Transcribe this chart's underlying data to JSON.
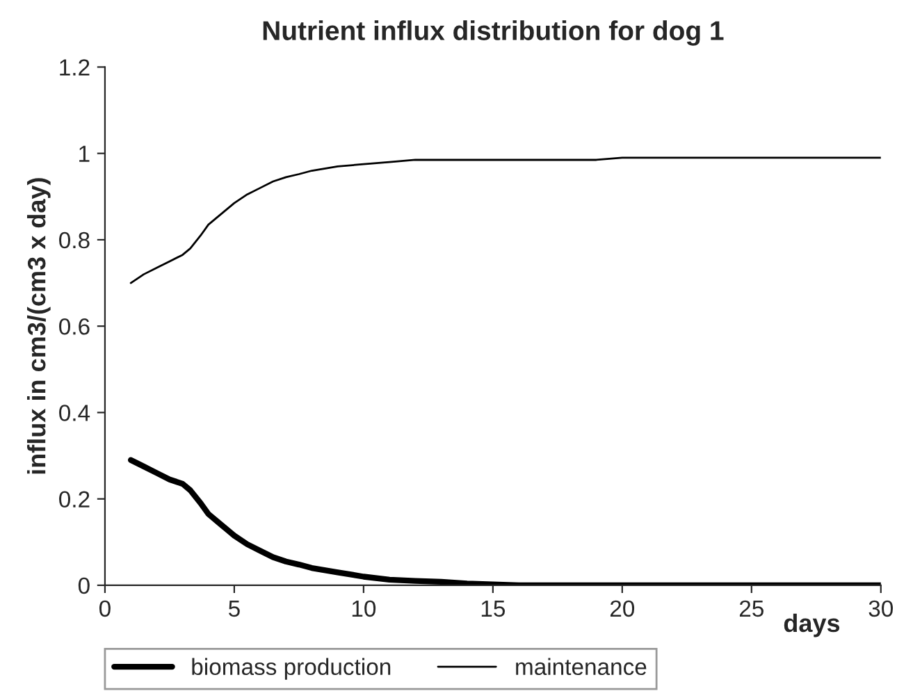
{
  "chart_data": {
    "type": "line",
    "title": "Nutrient influx distribution for dog 1",
    "xlabel": "days",
    "ylabel": "influx in cm3/(cm3 x day)",
    "xlim": [
      0,
      30
    ],
    "xticks": [
      0,
      5,
      10,
      15,
      20,
      25,
      30
    ],
    "ylim": [
      0,
      1.2
    ],
    "yticks": [
      0,
      0.2,
      0.4,
      0.6,
      0.8,
      1,
      1.2
    ],
    "grid": false,
    "legend": "bottom",
    "series": [
      {
        "name": "biomass production",
        "color": "#000000",
        "x": [
          1,
          1.5,
          2,
          2.5,
          3,
          3.3,
          3.7,
          4,
          4.5,
          5,
          5.5,
          6,
          6.5,
          7,
          7.5,
          8,
          9,
          10,
          11,
          12,
          13,
          14,
          15,
          16,
          30
        ],
        "values": [
          0.29,
          0.275,
          0.26,
          0.245,
          0.235,
          0.22,
          0.19,
          0.165,
          0.14,
          0.115,
          0.095,
          0.08,
          0.065,
          0.055,
          0.048,
          0.04,
          0.03,
          0.02,
          0.013,
          0.01,
          0.008,
          0.004,
          0.002,
          0,
          0
        ]
      },
      {
        "name": "maintenance",
        "color": "#000000",
        "x": [
          1,
          1.5,
          2,
          2.5,
          3,
          3.3,
          3.7,
          4,
          4.5,
          5,
          5.5,
          6,
          6.5,
          7,
          7.5,
          8,
          9,
          10,
          11,
          12,
          13,
          19,
          20,
          30
        ],
        "values": [
          0.7,
          0.72,
          0.735,
          0.75,
          0.765,
          0.78,
          0.81,
          0.835,
          0.86,
          0.885,
          0.905,
          0.92,
          0.935,
          0.945,
          0.952,
          0.96,
          0.97,
          0.975,
          0.98,
          0.985,
          0.985,
          0.985,
          0.99,
          0.99
        ]
      }
    ]
  }
}
